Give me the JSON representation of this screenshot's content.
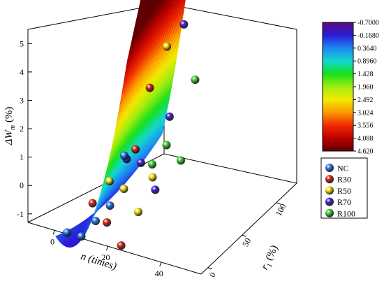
{
  "chart_data": {
    "type": "scatter",
    "subtype": "3d-scatter-with-fitted-surface",
    "title": "",
    "axes": {
      "x": {
        "label": "n (times)",
        "ticks": [
          "0",
          "20",
          "40"
        ],
        "range": [
          -10,
          55
        ]
      },
      "y": {
        "label": "r 1 (%)",
        "label_main": "r",
        "label_sub": "1",
        "label_unit": " (%)",
        "ticks": [
          "0",
          "50",
          "100"
        ],
        "range": [
          -10,
          130
        ]
      },
      "z": {
        "label": "ΔWm (%)",
        "label_main": "ΔW",
        "label_sub": "m",
        "label_unit": " (%)",
        "ticks": [
          "-1",
          "0",
          "1",
          "2",
          "3",
          "4",
          "5"
        ],
        "range": [
          -1.3,
          5.5
        ]
      }
    },
    "grid": false,
    "surface": {
      "description": "fitted surface colored by ΔWm",
      "colorbar": {
        "ticks": [
          "-0.7000",
          "-0.1680",
          "0.3640",
          "0.8960",
          "1.428",
          "1.960",
          "2.492",
          "3.024",
          "3.556",
          "4.088",
          "4.620"
        ],
        "min": -0.7,
        "max": 4.62,
        "colors": [
          "#5b0a7a",
          "#2a1dd6",
          "#1f86f2",
          "#14d7d2",
          "#15e01d",
          "#a0ec10",
          "#f4ea00",
          "#fb9a00",
          "#f02a00",
          "#bc0000",
          "#5e0000"
        ]
      }
    },
    "legend": {
      "placement": "right",
      "items": [
        {
          "name": "NC",
          "color": "#2f7de9"
        },
        {
          "name": "R30",
          "color": "#d42a1a"
        },
        {
          "name": "R50",
          "color": "#f4e21a"
        },
        {
          "name": "R70",
          "color": "#4a22d3"
        },
        {
          "name": "R100",
          "color": "#3bd12f"
        }
      ]
    },
    "series": [
      {
        "name": "NC",
        "points": [
          [
            0,
            0,
            0.1
          ],
          [
            10,
            0,
            -0.1
          ],
          [
            20,
            0,
            0.2
          ],
          [
            30,
            0,
            0.5
          ],
          [
            40,
            0,
            1.7
          ]
        ]
      },
      {
        "name": "R30",
        "points": [
          [
            0,
            30,
            0.3
          ],
          [
            10,
            30,
            -0.3
          ],
          [
            20,
            30,
            -1.0
          ],
          [
            30,
            30,
            1.4
          ],
          [
            40,
            30,
            2.9
          ]
        ]
      },
      {
        "name": "R50",
        "points": [
          [
            0,
            50,
            0.5
          ],
          [
            10,
            50,
            0.2
          ],
          [
            20,
            50,
            -0.5
          ],
          [
            30,
            50,
            0.3
          ],
          [
            40,
            50,
            3.6
          ]
        ]
      },
      {
        "name": "R70",
        "points": [
          [
            0,
            70,
            0.7
          ],
          [
            10,
            70,
            0.5
          ],
          [
            20,
            70,
            -0.3
          ],
          [
            30,
            70,
            1.5
          ],
          [
            40,
            70,
            3.8
          ]
        ]
      },
      {
        "name": "R100",
        "points": [
          [
            0,
            100,
            0.0
          ],
          [
            10,
            100,
            0.4
          ],
          [
            20,
            100,
            -0.1
          ],
          [
            30,
            100,
            1.9
          ],
          [
            40,
            100,
            5.0
          ]
        ]
      }
    ]
  }
}
